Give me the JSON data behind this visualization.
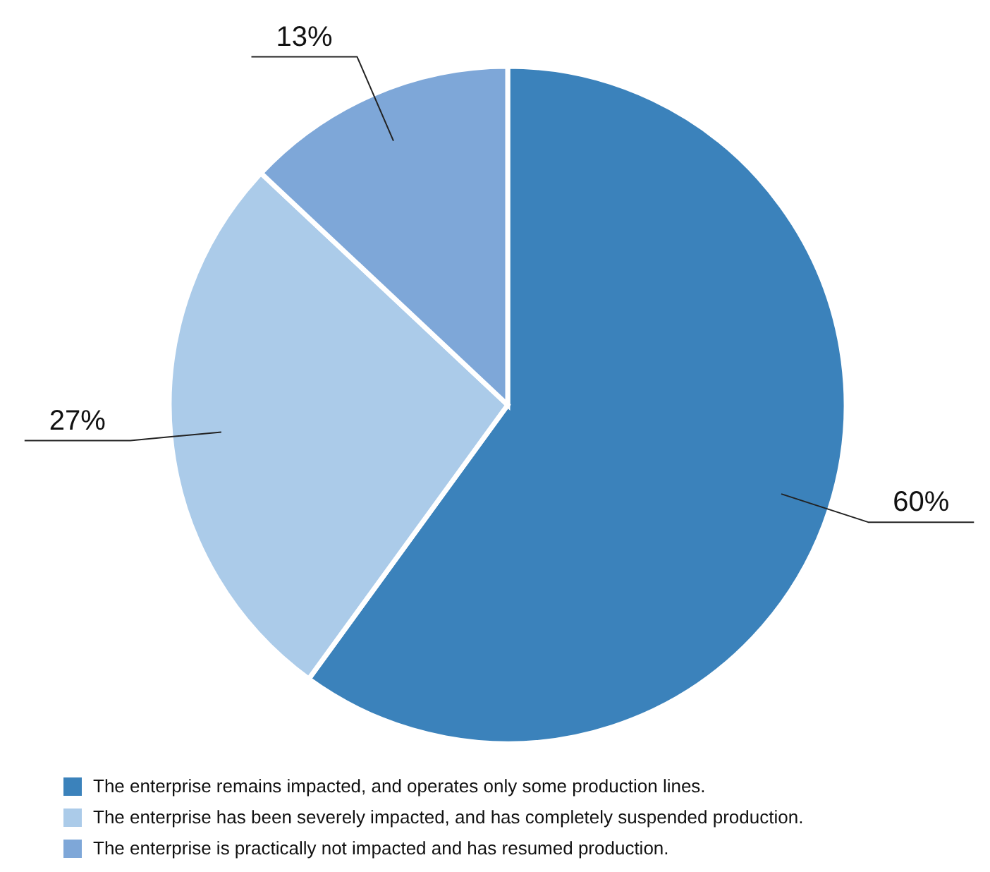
{
  "chart_data": {
    "type": "pie",
    "categories": [
      "The enterprise remains impacted, and operates only some production lines.",
      "The enterprise has been severely impacted, and has completely suspended production.",
      "The enterprise is practically not impacted and has resumed production."
    ],
    "values": [
      60,
      27,
      13
    ],
    "colors": [
      "#3b82bb",
      "#abcbe9",
      "#7ea7d8"
    ],
    "value_labels": [
      "60%",
      "27%",
      "13%"
    ],
    "legend": "bottom"
  }
}
